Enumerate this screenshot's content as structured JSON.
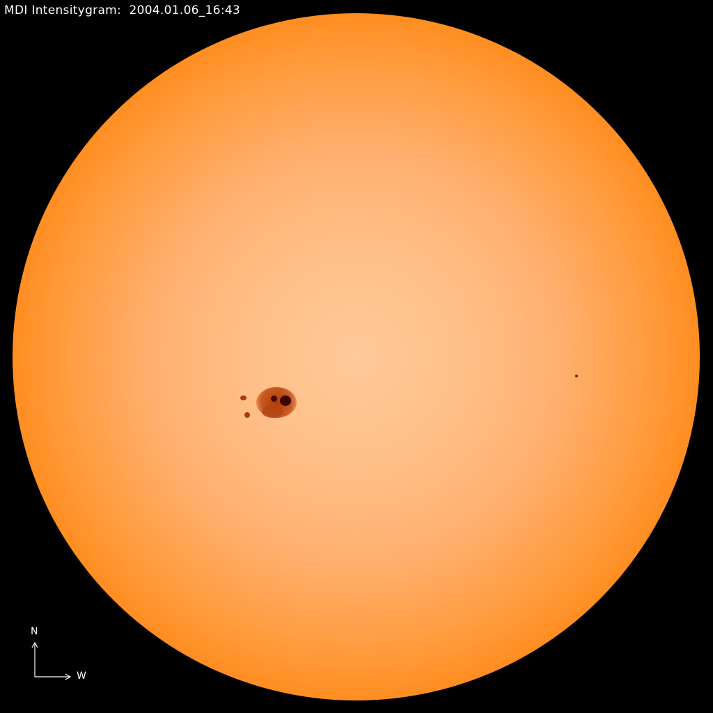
{
  "title": "MDI Intensitygram:  2004.01.06_16:43",
  "compass": {
    "north_label": "N",
    "west_label": "W"
  },
  "colors": {
    "background": "#000000",
    "disk_center": "#ffc999",
    "disk_limb": "#8a1800",
    "sunspot": "#5a0a00"
  }
}
